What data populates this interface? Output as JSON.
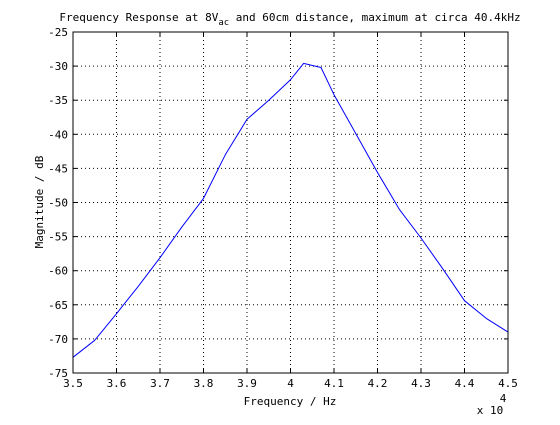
{
  "chart_data": {
    "type": "line",
    "title_main": "Frequency Response at 8V",
    "title_sub": "ac",
    "title_rest": " and 60cm distance, maximum at circa 40.4kHz",
    "xlabel": "Frequency / Hz",
    "ylabel": "Magnitude / dB",
    "x_exponent_base": "x 10",
    "x_exponent_power": "4",
    "xlim": [
      3.5,
      4.5
    ],
    "ylim": [
      -75,
      -25
    ],
    "x_tick_values": [
      3.5,
      3.6,
      3.7,
      3.8,
      3.9,
      4.0,
      4.1,
      4.2,
      4.3,
      4.4,
      4.5
    ],
    "x_tick_labels": [
      "3.5",
      "3.6",
      "3.7",
      "3.8",
      "3.9",
      "4",
      "4.1",
      "4.2",
      "4.3",
      "4.4",
      "4.5"
    ],
    "y_tick_values": [
      -25,
      -30,
      -35,
      -40,
      -45,
      -50,
      -55,
      -60,
      -65,
      -70,
      -75
    ],
    "y_tick_labels": [
      "-25",
      "-30",
      "-35",
      "-40",
      "-45",
      "-50",
      "-55",
      "-60",
      "-65",
      "-70",
      "-75"
    ],
    "grid": true,
    "series": [
      {
        "color": "#0000ff",
        "x": [
          3.5,
          3.55,
          3.6,
          3.65,
          3.7,
          3.75,
          3.8,
          3.85,
          3.9,
          3.95,
          4.0,
          4.03,
          4.07,
          4.1,
          4.15,
          4.2,
          4.25,
          4.3,
          4.35,
          4.4,
          4.45,
          4.5
        ],
        "y": [
          -72.7,
          -70.2,
          -66.3,
          -62.3,
          -58.1,
          -53.6,
          -49.4,
          -43.0,
          -37.8,
          -35.0,
          -32.0,
          -29.6,
          -30.2,
          -34.2,
          -39.9,
          -45.6,
          -51.0,
          -55.2,
          -59.7,
          -64.4,
          -67.0,
          -69.0
        ]
      }
    ]
  }
}
